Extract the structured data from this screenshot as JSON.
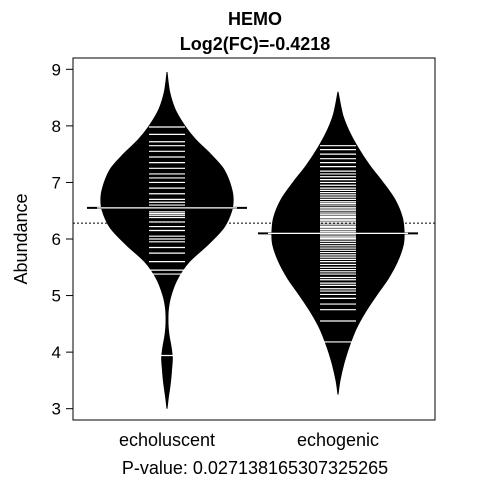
{
  "chart_data": {
    "type": "beanplot",
    "title": "HEMO",
    "subtitle": "Log2(FC)=-0.4218",
    "ylabel": "Abundance",
    "xlabel": "P-value: 0.027138165307325265",
    "categories": [
      "echoluscent",
      "echogenic"
    ],
    "ylim": [
      2.8,
      9.2
    ],
    "yticks": [
      3,
      4,
      5,
      6,
      7,
      8,
      9
    ],
    "overall_mean": 6.28,
    "grid": false,
    "groups": [
      {
        "name": "echoluscent",
        "mean": 6.55,
        "density": [
          [
            3.0,
            0.0
          ],
          [
            3.2,
            0.02
          ],
          [
            3.45,
            0.05
          ],
          [
            3.7,
            0.07
          ],
          [
            3.9,
            0.08
          ],
          [
            4.1,
            0.06
          ],
          [
            4.3,
            0.03
          ],
          [
            4.5,
            0.015
          ],
          [
            4.75,
            0.02
          ],
          [
            5.0,
            0.06
          ],
          [
            5.3,
            0.16
          ],
          [
            5.6,
            0.34
          ],
          [
            5.9,
            0.62
          ],
          [
            6.2,
            0.86
          ],
          [
            6.5,
            0.98
          ],
          [
            6.75,
            1.0
          ],
          [
            7.0,
            0.95
          ],
          [
            7.25,
            0.85
          ],
          [
            7.5,
            0.66
          ],
          [
            7.75,
            0.44
          ],
          [
            8.0,
            0.27
          ],
          [
            8.3,
            0.12
          ],
          [
            8.6,
            0.04
          ],
          [
            8.95,
            0.0
          ]
        ],
        "observations": [
          3.94,
          5.38,
          5.45,
          5.6,
          5.75,
          5.85,
          5.95,
          6.0,
          6.05,
          6.15,
          6.22,
          6.3,
          6.38,
          6.42,
          6.45,
          6.48,
          6.55,
          6.6,
          6.65,
          6.7,
          6.8,
          6.9,
          7.0,
          7.08,
          7.15,
          7.25,
          7.35,
          7.45,
          7.55,
          7.65,
          7.72,
          7.85,
          7.98
        ]
      },
      {
        "name": "echogenic",
        "mean": 6.1,
        "density": [
          [
            3.25,
            0.0
          ],
          [
            3.5,
            0.03
          ],
          [
            3.8,
            0.09
          ],
          [
            4.1,
            0.17
          ],
          [
            4.4,
            0.27
          ],
          [
            4.7,
            0.41
          ],
          [
            5.0,
            0.58
          ],
          [
            5.3,
            0.76
          ],
          [
            5.6,
            0.9
          ],
          [
            5.9,
            0.99
          ],
          [
            6.15,
            1.0
          ],
          [
            6.4,
            0.97
          ],
          [
            6.7,
            0.86
          ],
          [
            7.0,
            0.68
          ],
          [
            7.3,
            0.48
          ],
          [
            7.6,
            0.31
          ],
          [
            7.9,
            0.17
          ],
          [
            8.2,
            0.07
          ],
          [
            8.6,
            0.0
          ]
        ],
        "observations": [
          4.18,
          4.55,
          4.75,
          4.85,
          4.95,
          5.02,
          5.08,
          5.12,
          5.18,
          5.22,
          5.28,
          5.32,
          5.38,
          5.42,
          5.46,
          5.5,
          5.55,
          5.6,
          5.64,
          5.68,
          5.72,
          5.76,
          5.8,
          5.84,
          5.88,
          5.92,
          5.96,
          6.0,
          6.02,
          6.05,
          6.08,
          6.1,
          6.12,
          6.14,
          6.17,
          6.2,
          6.22,
          6.25,
          6.28,
          6.3,
          6.33,
          6.35,
          6.38,
          6.4,
          6.43,
          6.46,
          6.5,
          6.53,
          6.56,
          6.6,
          6.63,
          6.66,
          6.7,
          6.74,
          6.78,
          6.82,
          6.86,
          6.9,
          6.95,
          7.0,
          7.05,
          7.1,
          7.15,
          7.2,
          7.28,
          7.35,
          7.42,
          7.5,
          7.58,
          7.65
        ]
      }
    ]
  }
}
